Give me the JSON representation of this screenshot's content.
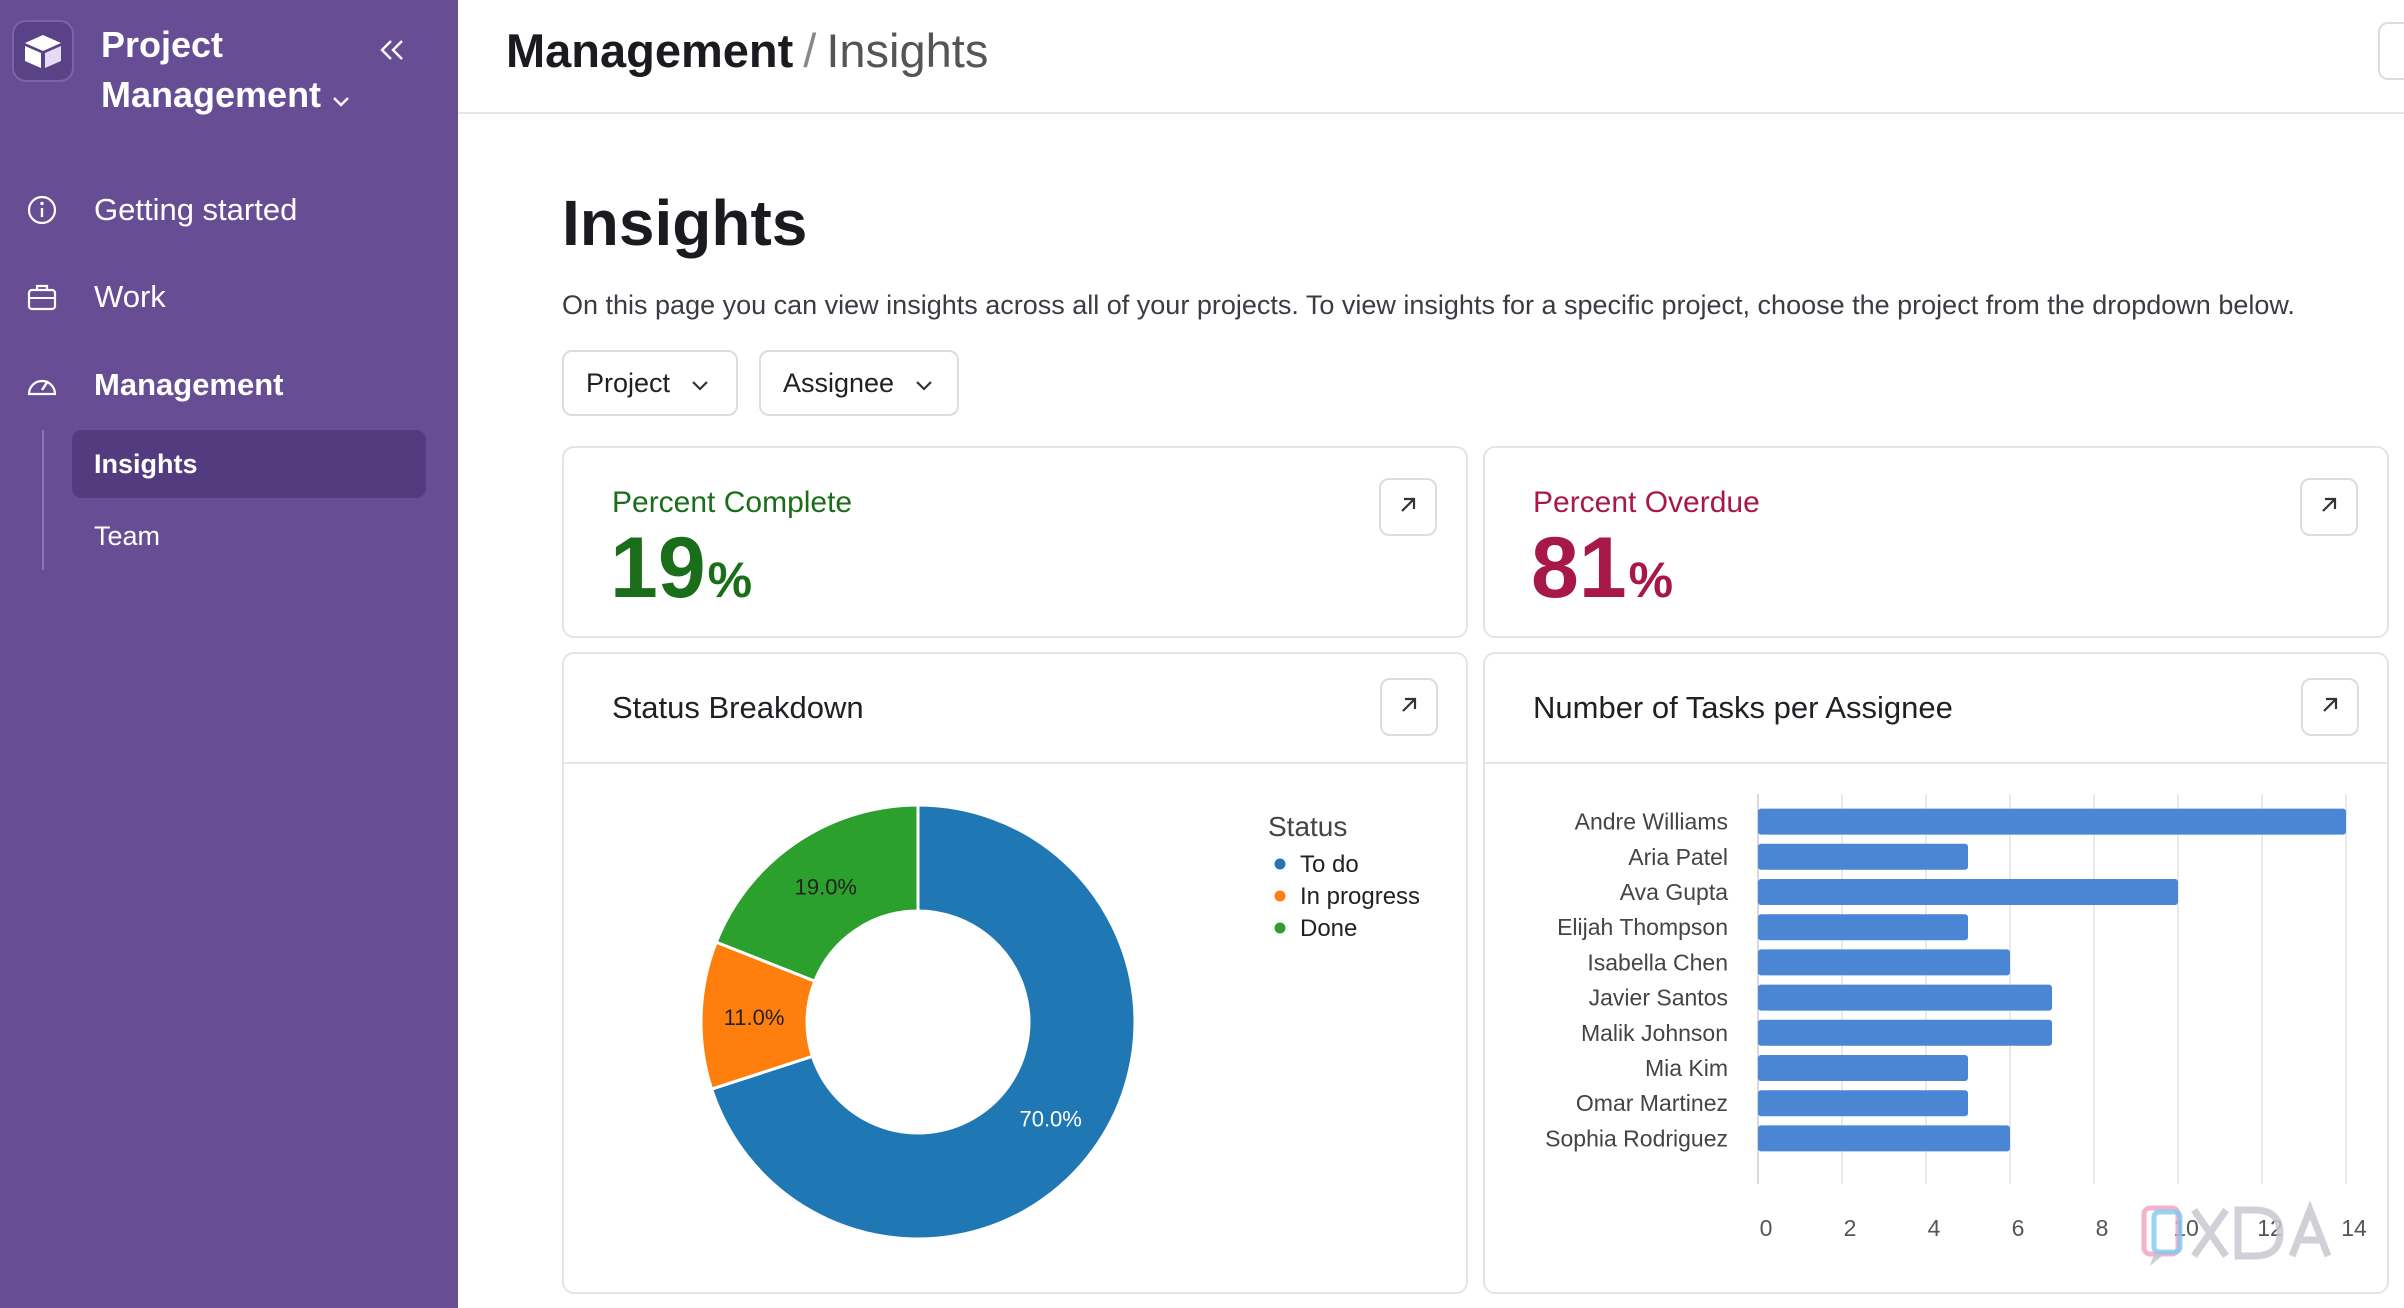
{
  "sidebar": {
    "app_name_line1": "Project",
    "app_name_line2": "Management",
    "items": [
      {
        "label": "Getting started",
        "icon": "info-icon"
      },
      {
        "label": "Work",
        "icon": "briefcase-icon"
      },
      {
        "label": "Management",
        "icon": "gauge-icon"
      }
    ],
    "subitems": [
      {
        "label": "Insights",
        "active": true
      },
      {
        "label": "Team",
        "active": false
      }
    ]
  },
  "header": {
    "breadcrumb_parent": "Management",
    "breadcrumb_separator": "/",
    "breadcrumb_current": "Insights"
  },
  "main": {
    "title": "Insights",
    "description": "On this page you can view insights across all of your projects. To view insights for a specific project, choose the project from the dropdown below.",
    "filters": [
      {
        "label": "Project"
      },
      {
        "label": "Assignee"
      }
    ],
    "kpis": [
      {
        "label": "Percent Complete",
        "value": "19",
        "unit": "%",
        "color": "#1a6e1a"
      },
      {
        "label": "Percent Overdue",
        "value": "81",
        "unit": "%",
        "color": "#a8174a"
      }
    ],
    "status_card_title": "Status Breakdown",
    "tasks_card_title": "Number of Tasks per Assignee"
  },
  "chart_data": [
    {
      "type": "pie",
      "variant": "donut",
      "legend_title": "Status",
      "legend_position": "top-right",
      "categories": [
        "To do",
        "In progress",
        "Done"
      ],
      "values": [
        70.0,
        11.0,
        19.0
      ],
      "labels": [
        "70.0%",
        "11.0%",
        "19.0%"
      ],
      "colors": [
        "#1f77b4",
        "#ff7f0e",
        "#2ca02c"
      ]
    },
    {
      "type": "bar",
      "orientation": "horizontal",
      "categories": [
        "Andre Williams",
        "Aria Patel",
        "Ava Gupta",
        "Elijah Thompson",
        "Isabella Chen",
        "Javier Santos",
        "Malik Johnson",
        "Mia Kim",
        "Omar Martinez",
        "Sophia Rodriguez"
      ],
      "values": [
        14,
        5,
        10,
        5,
        6,
        7,
        7,
        5,
        5,
        6
      ],
      "xlim": [
        0,
        14
      ],
      "xticks": [
        "0",
        "2",
        "4",
        "6",
        "8",
        "10",
        "12",
        "14"
      ],
      "grid": true,
      "color": "#4a86d4"
    }
  ],
  "watermark": {
    "text": "XDA"
  }
}
